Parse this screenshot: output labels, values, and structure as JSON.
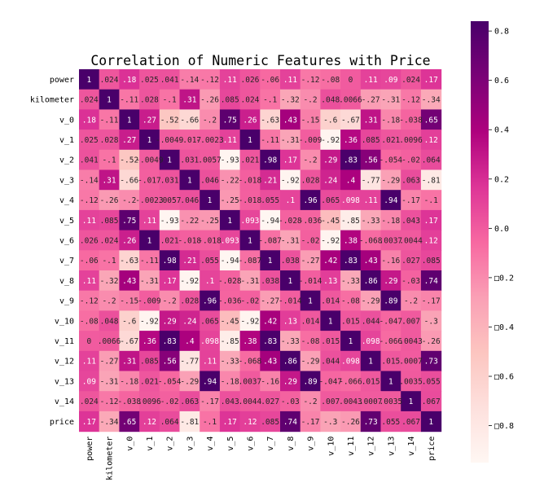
{
  "chart_data": {
    "type": "heatmap",
    "title": "Correlation of Numeric Features with Price",
    "labels": [
      "power",
      "kilometer",
      "v_0",
      "v_1",
      "v_2",
      "v_3",
      "v_4",
      "v_5",
      "v_6",
      "v_7",
      "v_8",
      "v_9",
      "v_10",
      "v_11",
      "v_12",
      "v_13",
      "v_14",
      "price"
    ],
    "matrix": [
      [
        1,
        0.024,
        0.18,
        0.025,
        0.041,
        -0.14,
        -0.12,
        0.11,
        0.026,
        -0.06,
        0.11,
        -0.12,
        -0.08,
        -0.0,
        0.11,
        0.09,
        0.024,
        0.17
      ],
      [
        0.024,
        1,
        -0.11,
        0.028,
        -0.1,
        0.31,
        -0.26,
        0.085,
        0.024,
        -0.1,
        -0.32,
        -0.2,
        0.048,
        0.0066,
        -0.27,
        -0.31,
        -0.12,
        -0.34
      ],
      [
        0.18,
        -0.11,
        1,
        0.27,
        -0.52,
        -0.66,
        -0.2,
        0.75,
        0.26,
        -0.63,
        0.43,
        -0.15,
        -0.6,
        -0.67,
        0.31,
        -0.18,
        -0.038,
        0.65
      ],
      [
        0.025,
        0.028,
        0.27,
        1,
        -0.0049,
        -0.017,
        -0.0023,
        0.11,
        1,
        -0.11,
        -0.31,
        -0.009,
        -0.92,
        0.36,
        0.085,
        0.021,
        0.0096,
        0.12
      ],
      [
        0.041,
        -0.1,
        -0.52,
        -0.0049,
        1,
        0.031,
        0.0057,
        -0.93,
        0.021,
        0.98,
        0.17,
        -0.2,
        0.29,
        0.83,
        0.56,
        -0.054,
        -0.02,
        0.064
      ],
      [
        -0.14,
        0.31,
        -0.66,
        -0.017,
        0.031,
        1,
        0.046,
        -0.22,
        -0.018,
        0.21,
        -0.92,
        0.028,
        0.24,
        0.4,
        -0.77,
        -0.29,
        0.063,
        -0.81
      ],
      [
        -0.12,
        -0.26,
        -0.2,
        -0.0023,
        0.0057,
        0.046,
        1,
        -0.25,
        -0.018,
        0.055,
        0.1,
        0.96,
        0.065,
        0.098,
        0.11,
        0.94,
        -0.17,
        -0.1
      ],
      [
        0.11,
        0.085,
        0.75,
        0.11,
        -0.93,
        -0.22,
        -0.25,
        1,
        0.093,
        -0.94,
        -0.028,
        -0.036,
        -0.45,
        -0.85,
        -0.33,
        -0.18,
        0.043,
        0.17
      ],
      [
        0.026,
        0.024,
        0.26,
        1,
        0.021,
        -0.018,
        -0.018,
        0.093,
        1,
        -0.087,
        -0.31,
        -0.02,
        -0.92,
        0.38,
        -0.068,
        0.0037,
        0.0044,
        0.12
      ],
      [
        -0.06,
        -0.1,
        -0.63,
        -0.11,
        0.98,
        0.21,
        0.055,
        -0.94,
        -0.087,
        1,
        0.038,
        -0.27,
        0.42,
        0.83,
        0.43,
        -0.16,
        0.027,
        0.085
      ],
      [
        0.11,
        -0.32,
        0.43,
        -0.31,
        0.17,
        -0.92,
        0.1,
        -0.028,
        -0.31,
        0.038,
        1,
        -0.014,
        0.13,
        -0.33,
        0.86,
        0.29,
        -0.03,
        0.74
      ],
      [
        -0.12,
        -0.2,
        -0.15,
        -0.009,
        -0.2,
        0.028,
        0.96,
        -0.036,
        -0.02,
        -0.27,
        -0.014,
        1,
        0.014,
        -0.08,
        -0.29,
        0.89,
        -0.2,
        -0.17
      ],
      [
        -0.08,
        0.048,
        -0.6,
        -0.92,
        0.29,
        0.24,
        0.065,
        -0.45,
        -0.92,
        0.42,
        0.13,
        0.014,
        1,
        0.015,
        0.044,
        -0.047,
        0.007,
        -0.3
      ],
      [
        -0.0,
        0.0066,
        -0.67,
        0.36,
        0.83,
        0.4,
        0.098,
        -0.85,
        0.38,
        0.83,
        -0.33,
        -0.08,
        0.015,
        1,
        0.098,
        -0.066,
        0.0043,
        -0.26
      ],
      [
        0.11,
        -0.27,
        0.31,
        0.085,
        0.56,
        -0.77,
        0.11,
        -0.33,
        -0.068,
        0.43,
        0.86,
        -0.29,
        0.044,
        0.098,
        1,
        0.015,
        0.0007,
        0.73
      ],
      [
        0.09,
        -0.31,
        -0.18,
        0.021,
        -0.054,
        -0.29,
        0.94,
        -0.18,
        0.0037,
        -0.16,
        0.29,
        0.89,
        -0.047,
        -0.066,
        0.015,
        1,
        0.0035,
        0.055
      ],
      [
        0.024,
        -0.12,
        -0.038,
        0.0096,
        -0.02,
        0.063,
        -0.17,
        0.043,
        0.0044,
        0.027,
        -0.03,
        -0.2,
        0.007,
        0.0043,
        0.0007,
        0.0035,
        1,
        0.067
      ],
      [
        0.17,
        -0.34,
        0.65,
        0.12,
        0.064,
        -0.81,
        -0.1,
        0.17,
        0.12,
        0.085,
        0.74,
        -0.17,
        -0.3,
        -0.26,
        0.73,
        0.055,
        0.067,
        1
      ]
    ],
    "colormap": "RdPu",
    "vmin": -0.95,
    "vmax": 0.84,
    "colorbar_ticks": [
      "0.8",
      "0.6",
      "0.4",
      "0.2",
      "0.0",
      "□0.2",
      "□0.4",
      "□0.6",
      "□0.8"
    ],
    "colorbar_tick_values": [
      0.8,
      0.6,
      0.4,
      0.2,
      0.0,
      -0.2,
      -0.4,
      -0.6,
      -0.8
    ],
    "annot_format": "2g"
  },
  "colors": {
    "cmap_stops": [
      "#fff7f3",
      "#fde0dd",
      "#fcc5c0",
      "#fa9fb5",
      "#f768a1",
      "#dd3497",
      "#ae017e",
      "#7a0177",
      "#49006a"
    ]
  }
}
